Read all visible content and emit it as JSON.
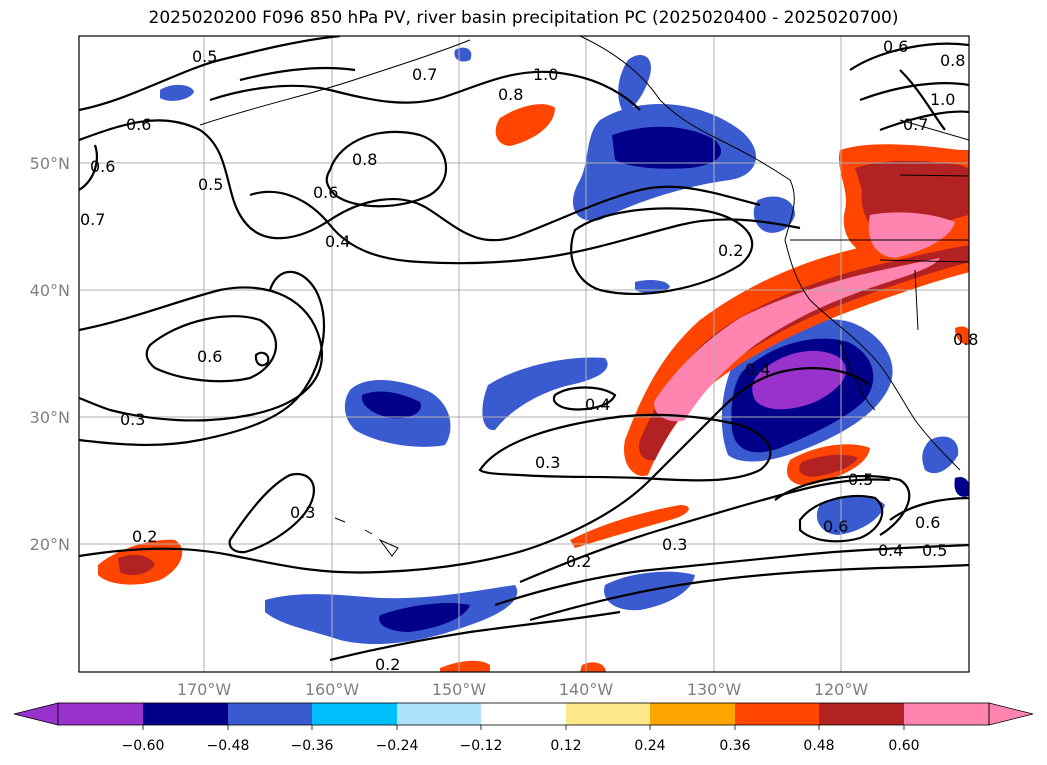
{
  "title": "2025020200 F096 850 hPa PV, river basin precipitation PC (2025020400 - 2025020700)",
  "map": {
    "lat_labels": [
      "50°N",
      "40°N",
      "30°N",
      "20°N"
    ],
    "lon_labels": [
      "170°W",
      "160°W",
      "150°W",
      "140°W",
      "130°W",
      "120°W"
    ],
    "contour_labels": [
      "0.5",
      "0.7",
      "1.0",
      "0.8",
      "0.6",
      "0.8",
      "0.7",
      "0.6",
      "0.5",
      "0.6",
      "0.4",
      "0.2",
      "0.6",
      "0.3",
      "0.4",
      "0.3",
      "0.4",
      "0.5",
      "0.6",
      "0.3",
      "0.2",
      "0.2",
      "0.3",
      "0.4",
      "0.5",
      "0.6",
      "0.2",
      "0.6",
      "0.8",
      "1.0",
      "0.7",
      "0.8"
    ],
    "land_color": "#ffffff",
    "contour_color": "#000000"
  },
  "colorbar": {
    "ticks": [
      "−0.60",
      "−0.48",
      "−0.36",
      "−0.24",
      "−0.12",
      "0.12",
      "0.24",
      "0.36",
      "0.48",
      "0.60"
    ],
    "colors": [
      "#9932cc",
      "#00008b",
      "#3a5bd0",
      "#00bfff",
      "#aee2fa",
      "#ffffff",
      "#fce88a",
      "#ffa500",
      "#ff4500",
      "#b22222",
      "#ff85b0"
    ]
  }
}
